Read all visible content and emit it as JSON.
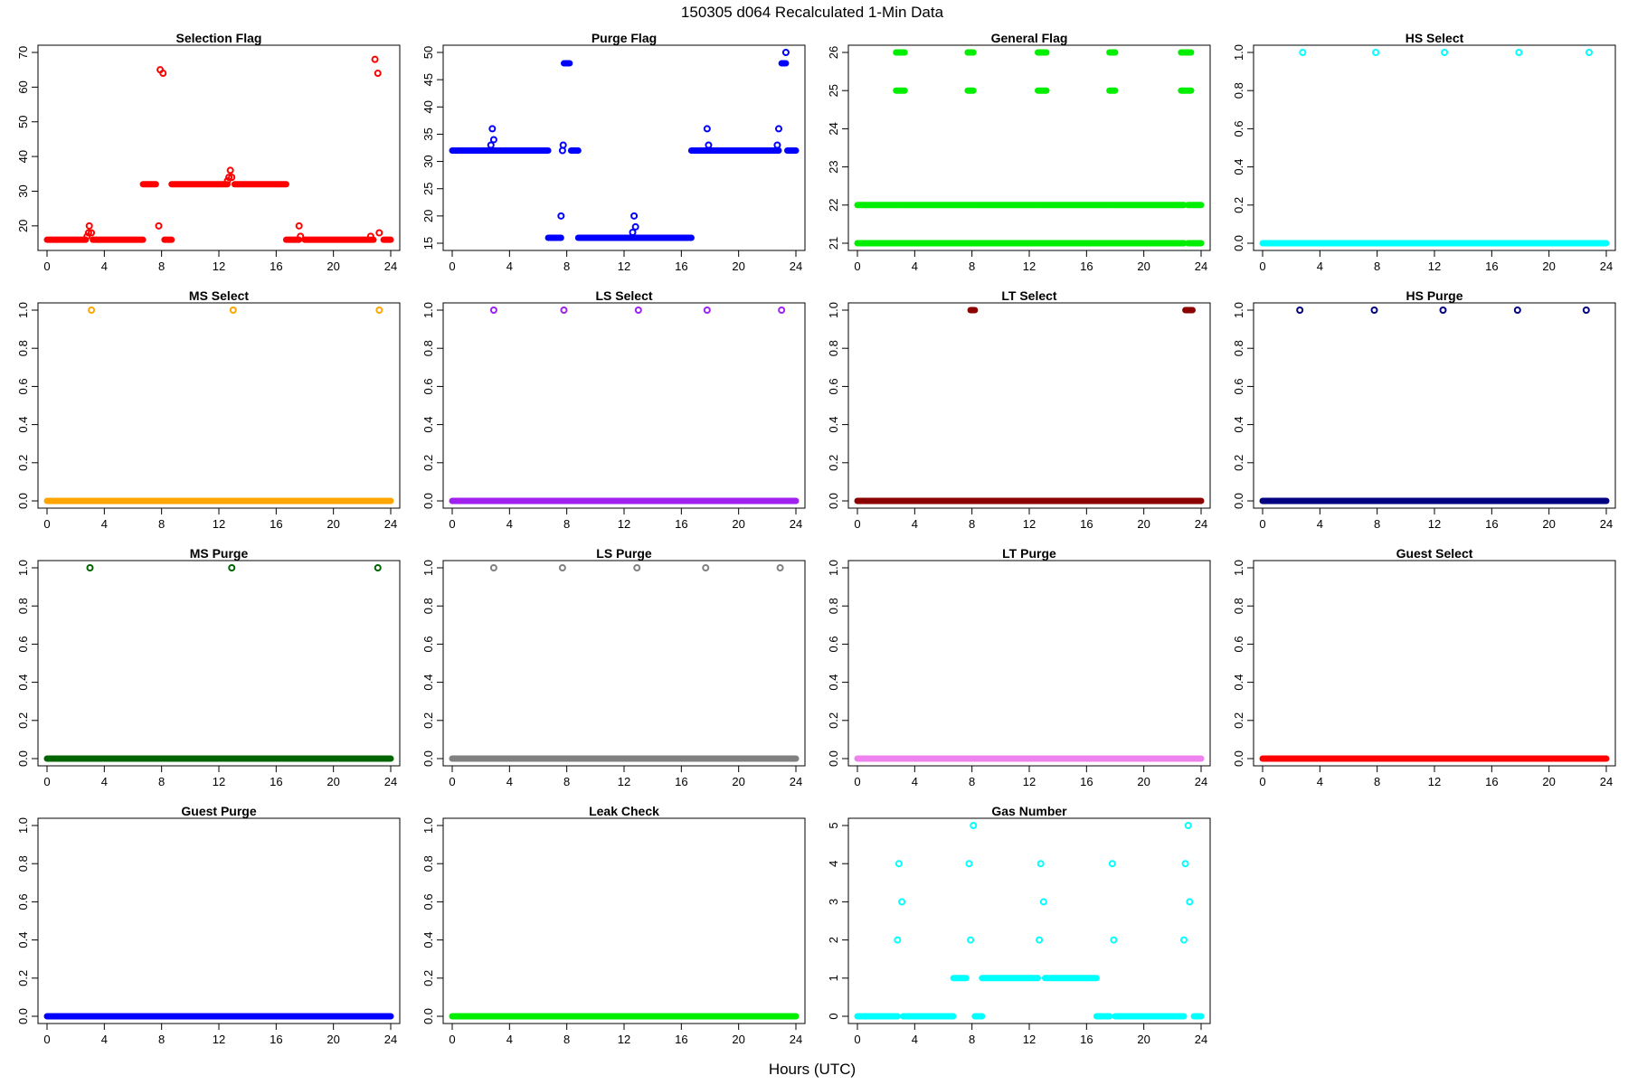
{
  "figure": {
    "title": "150305   d064   Recalculated 1-Min Data",
    "xlabel": "Hours (UTC)"
  },
  "chart_data": [
    {
      "type": "scatter",
      "title": "Selection Flag",
      "color": "#ff0000",
      "xlim": [
        0,
        24
      ],
      "ylim": [
        15,
        70
      ],
      "xticks": [
        0,
        4,
        8,
        12,
        16,
        20,
        24
      ],
      "yticks": [
        20,
        30,
        40,
        50,
        60,
        70
      ],
      "runs": [
        {
          "x0": 0,
          "x1": 2.7,
          "y": 16
        },
        {
          "x0": 3.2,
          "x1": 6.7,
          "y": 16
        },
        {
          "x0": 6.7,
          "x1": 7.6,
          "y": 32
        },
        {
          "x0": 8.2,
          "x1": 8.7,
          "y": 16
        },
        {
          "x0": 8.7,
          "x1": 12.6,
          "y": 32
        },
        {
          "x0": 13.1,
          "x1": 16.7,
          "y": 32
        },
        {
          "x0": 16.7,
          "x1": 17.6,
          "y": 16
        },
        {
          "x0": 18,
          "x1": 22.8,
          "y": 16
        },
        {
          "x0": 23.5,
          "x1": 24,
          "y": 16
        }
      ],
      "points": [
        [
          2.8,
          17
        ],
        [
          2.9,
          18
        ],
        [
          2.95,
          20
        ],
        [
          3.1,
          18
        ],
        [
          7.8,
          20
        ],
        [
          7.9,
          65
        ],
        [
          8.1,
          64
        ],
        [
          12.6,
          33
        ],
        [
          12.7,
          34
        ],
        [
          12.8,
          36
        ],
        [
          12.9,
          34
        ],
        [
          17.6,
          20
        ],
        [
          17.7,
          17
        ],
        [
          22.6,
          17
        ],
        [
          22.9,
          68
        ],
        [
          23.1,
          64
        ],
        [
          23.2,
          18
        ]
      ]
    },
    {
      "type": "scatter",
      "title": "Purge Flag",
      "color": "#0000ff",
      "xlim": [
        0,
        24
      ],
      "ylim": [
        15,
        50
      ],
      "xticks": [
        0,
        4,
        8,
        12,
        16,
        20,
        24
      ],
      "yticks": [
        15,
        20,
        25,
        30,
        35,
        40,
        45,
        50
      ],
      "runs": [
        {
          "x0": 0,
          "x1": 6.7,
          "y": 32
        },
        {
          "x0": 6.7,
          "x1": 7.6,
          "y": 16
        },
        {
          "x0": 7.8,
          "x1": 8.2,
          "y": 48
        },
        {
          "x0": 8.3,
          "x1": 8.8,
          "y": 32
        },
        {
          "x0": 8.8,
          "x1": 16.7,
          "y": 16
        },
        {
          "x0": 16.7,
          "x1": 22.8,
          "y": 32
        },
        {
          "x0": 23,
          "x1": 23.3,
          "y": 48
        },
        {
          "x0": 23.4,
          "x1": 24,
          "y": 32
        }
      ],
      "points": [
        [
          2.7,
          33
        ],
        [
          2.8,
          36
        ],
        [
          2.9,
          34
        ],
        [
          7.6,
          20
        ],
        [
          7.7,
          32
        ],
        [
          7.75,
          33
        ],
        [
          12.6,
          17
        ],
        [
          12.7,
          20
        ],
        [
          12.8,
          18
        ],
        [
          17.8,
          36
        ],
        [
          17.9,
          33
        ],
        [
          22.7,
          33
        ],
        [
          22.8,
          36
        ],
        [
          23.3,
          50
        ]
      ]
    },
    {
      "type": "scatter",
      "title": "General Flag",
      "color": "#00ee00",
      "xlim": [
        0,
        24
      ],
      "ylim": [
        21,
        26
      ],
      "xticks": [
        0,
        4,
        8,
        12,
        16,
        20,
        24
      ],
      "yticks": [
        21,
        22,
        23,
        24,
        25,
        26
      ],
      "runs": [
        {
          "x0": 0,
          "x1": 3.2,
          "y": 21
        },
        {
          "x0": 3.3,
          "x1": 7.9,
          "y": 21
        },
        {
          "x0": 8.0,
          "x1": 12.8,
          "y": 21
        },
        {
          "x0": 12.9,
          "x1": 17.8,
          "y": 21
        },
        {
          "x0": 17.9,
          "x1": 22.8,
          "y": 21
        },
        {
          "x0": 23.1,
          "x1": 24,
          "y": 21
        },
        {
          "x0": 0,
          "x1": 3.2,
          "y": 22
        },
        {
          "x0": 3.3,
          "x1": 7.9,
          "y": 22
        },
        {
          "x0": 8.0,
          "x1": 12.8,
          "y": 22
        },
        {
          "x0": 12.9,
          "x1": 17.8,
          "y": 22
        },
        {
          "x0": 17.9,
          "x1": 22.8,
          "y": 22
        },
        {
          "x0": 23.1,
          "x1": 24,
          "y": 22
        },
        {
          "x0": 2.7,
          "x1": 3.3,
          "y": 25
        },
        {
          "x0": 7.7,
          "x1": 8.1,
          "y": 25
        },
        {
          "x0": 12.6,
          "x1": 13.2,
          "y": 25
        },
        {
          "x0": 17.6,
          "x1": 18.0,
          "y": 25
        },
        {
          "x0": 22.6,
          "x1": 23.3,
          "y": 25
        },
        {
          "x0": 2.7,
          "x1": 3.3,
          "y": 26
        },
        {
          "x0": 7.7,
          "x1": 8.1,
          "y": 26
        },
        {
          "x0": 12.6,
          "x1": 13.2,
          "y": 26
        },
        {
          "x0": 17.6,
          "x1": 18.0,
          "y": 26
        },
        {
          "x0": 22.6,
          "x1": 23.3,
          "y": 26
        }
      ],
      "points": []
    },
    {
      "type": "scatter",
      "title": "HS Select",
      "color": "#00ffff",
      "xlim": [
        0,
        24
      ],
      "ylim": [
        0,
        1
      ],
      "xticks": [
        0,
        4,
        8,
        12,
        16,
        20,
        24
      ],
      "yticks": [
        0.0,
        0.2,
        0.4,
        0.6,
        0.8,
        1.0
      ],
      "runs": [
        {
          "x0": 0,
          "x1": 24,
          "y": 0
        }
      ],
      "points": [
        [
          2.8,
          1
        ],
        [
          7.9,
          1
        ],
        [
          12.7,
          1
        ],
        [
          17.9,
          1
        ],
        [
          22.8,
          1
        ]
      ]
    },
    {
      "type": "scatter",
      "title": "MS Select",
      "color": "#ffa500",
      "xlim": [
        0,
        24
      ],
      "ylim": [
        0,
        1
      ],
      "xticks": [
        0,
        4,
        8,
        12,
        16,
        20,
        24
      ],
      "yticks": [
        0.0,
        0.2,
        0.4,
        0.6,
        0.8,
        1.0
      ],
      "runs": [
        {
          "x0": 0,
          "x1": 24,
          "y": 0
        }
      ],
      "points": [
        [
          3.1,
          1
        ],
        [
          13.0,
          1
        ],
        [
          23.2,
          1
        ]
      ]
    },
    {
      "type": "scatter",
      "title": "LS Select",
      "color": "#a020f0",
      "xlim": [
        0,
        24
      ],
      "ylim": [
        0,
        1
      ],
      "xticks": [
        0,
        4,
        8,
        12,
        16,
        20,
        24
      ],
      "yticks": [
        0.0,
        0.2,
        0.4,
        0.6,
        0.8,
        1.0
      ],
      "runs": [
        {
          "x0": 0,
          "x1": 24,
          "y": 0
        }
      ],
      "points": [
        [
          2.9,
          1
        ],
        [
          7.8,
          1
        ],
        [
          13.0,
          1
        ],
        [
          17.8,
          1
        ],
        [
          23.0,
          1
        ]
      ]
    },
    {
      "type": "scatter",
      "title": "LT Select",
      "color": "#8b0000",
      "xlim": [
        0,
        24
      ],
      "ylim": [
        0,
        1
      ],
      "xticks": [
        0,
        4,
        8,
        12,
        16,
        20,
        24
      ],
      "yticks": [
        0.0,
        0.2,
        0.4,
        0.6,
        0.8,
        1.0
      ],
      "runs": [
        {
          "x0": 0,
          "x1": 24,
          "y": 0
        },
        {
          "x0": 7.9,
          "x1": 8.2,
          "y": 1
        },
        {
          "x0": 22.9,
          "x1": 23.4,
          "y": 1
        }
      ],
      "points": []
    },
    {
      "type": "scatter",
      "title": "HS Purge",
      "color": "#000080",
      "xlim": [
        0,
        24
      ],
      "ylim": [
        0,
        1
      ],
      "xticks": [
        0,
        4,
        8,
        12,
        16,
        20,
        24
      ],
      "yticks": [
        0.0,
        0.2,
        0.4,
        0.6,
        0.8,
        1.0
      ],
      "runs": [
        {
          "x0": 0,
          "x1": 24,
          "y": 0
        }
      ],
      "points": [
        [
          2.6,
          1
        ],
        [
          7.8,
          1
        ],
        [
          12.6,
          1
        ],
        [
          17.8,
          1
        ],
        [
          22.6,
          1
        ]
      ]
    },
    {
      "type": "scatter",
      "title": "MS Purge",
      "color": "#006400",
      "xlim": [
        0,
        24
      ],
      "ylim": [
        0,
        1
      ],
      "xticks": [
        0,
        4,
        8,
        12,
        16,
        20,
        24
      ],
      "yticks": [
        0.0,
        0.2,
        0.4,
        0.6,
        0.8,
        1.0
      ],
      "runs": [
        {
          "x0": 0,
          "x1": 24,
          "y": 0
        }
      ],
      "points": [
        [
          3.0,
          1
        ],
        [
          12.9,
          1
        ],
        [
          23.1,
          1
        ]
      ]
    },
    {
      "type": "scatter",
      "title": "LS Purge",
      "color": "#808080",
      "xlim": [
        0,
        24
      ],
      "ylim": [
        0,
        1
      ],
      "xticks": [
        0,
        4,
        8,
        12,
        16,
        20,
        24
      ],
      "yticks": [
        0.0,
        0.2,
        0.4,
        0.6,
        0.8,
        1.0
      ],
      "runs": [
        {
          "x0": 0,
          "x1": 24,
          "y": 0
        }
      ],
      "points": [
        [
          2.9,
          1
        ],
        [
          7.7,
          1
        ],
        [
          12.9,
          1
        ],
        [
          17.7,
          1
        ],
        [
          22.9,
          1
        ]
      ]
    },
    {
      "type": "scatter",
      "title": "LT Purge",
      "color": "#ee82ee",
      "xlim": [
        0,
        24
      ],
      "ylim": [
        0,
        1
      ],
      "xticks": [
        0,
        4,
        8,
        12,
        16,
        20,
        24
      ],
      "yticks": [
        0.0,
        0.2,
        0.4,
        0.6,
        0.8,
        1.0
      ],
      "runs": [
        {
          "x0": 0,
          "x1": 24,
          "y": 0
        }
      ],
      "points": []
    },
    {
      "type": "scatter",
      "title": "Guest Select",
      "color": "#ff0000",
      "xlim": [
        0,
        24
      ],
      "ylim": [
        0,
        1
      ],
      "xticks": [
        0,
        4,
        8,
        12,
        16,
        20,
        24
      ],
      "yticks": [
        0.0,
        0.2,
        0.4,
        0.6,
        0.8,
        1.0
      ],
      "runs": [
        {
          "x0": 0,
          "x1": 24,
          "y": 0
        }
      ],
      "points": []
    },
    {
      "type": "scatter",
      "title": "Guest Purge",
      "color": "#0000ff",
      "xlim": [
        0,
        24
      ],
      "ylim": [
        0,
        1
      ],
      "xticks": [
        0,
        4,
        8,
        12,
        16,
        20,
        24
      ],
      "yticks": [
        0.0,
        0.2,
        0.4,
        0.6,
        0.8,
        1.0
      ],
      "runs": [
        {
          "x0": 0,
          "x1": 24,
          "y": 0
        }
      ],
      "points": []
    },
    {
      "type": "scatter",
      "title": "Leak Check",
      "color": "#00ee00",
      "xlim": [
        0,
        24
      ],
      "ylim": [
        0,
        1
      ],
      "xticks": [
        0,
        4,
        8,
        12,
        16,
        20,
        24
      ],
      "yticks": [
        0.0,
        0.2,
        0.4,
        0.6,
        0.8,
        1.0
      ],
      "runs": [
        {
          "x0": 0,
          "x1": 24,
          "y": 0
        }
      ],
      "points": []
    },
    {
      "type": "scatter",
      "title": "Gas Number",
      "color": "#00ffff",
      "xlim": [
        0,
        24
      ],
      "ylim": [
        0,
        5
      ],
      "xticks": [
        0,
        4,
        8,
        12,
        16,
        20,
        24
      ],
      "yticks": [
        0,
        1,
        2,
        3,
        4,
        5
      ],
      "runs": [
        {
          "x0": 0,
          "x1": 2.8,
          "y": 0
        },
        {
          "x0": 3.2,
          "x1": 6.7,
          "y": 0
        },
        {
          "x0": 6.7,
          "x1": 7.6,
          "y": 1
        },
        {
          "x0": 8.2,
          "x1": 8.7,
          "y": 0
        },
        {
          "x0": 8.7,
          "x1": 12.6,
          "y": 1
        },
        {
          "x0": 13.1,
          "x1": 16.7,
          "y": 1
        },
        {
          "x0": 16.7,
          "x1": 17.6,
          "y": 0
        },
        {
          "x0": 18,
          "x1": 22.8,
          "y": 0
        },
        {
          "x0": 23.5,
          "x1": 24,
          "y": 0
        }
      ],
      "points": [
        [
          2.8,
          2
        ],
        [
          2.9,
          4
        ],
        [
          3.1,
          3
        ],
        [
          7.8,
          4
        ],
        [
          7.9,
          2
        ],
        [
          8.1,
          5
        ],
        [
          12.7,
          2
        ],
        [
          12.8,
          4
        ],
        [
          13.0,
          3
        ],
        [
          17.8,
          4
        ],
        [
          17.9,
          2
        ],
        [
          22.8,
          2
        ],
        [
          22.9,
          4
        ],
        [
          23.1,
          5
        ],
        [
          23.2,
          3
        ]
      ]
    }
  ]
}
